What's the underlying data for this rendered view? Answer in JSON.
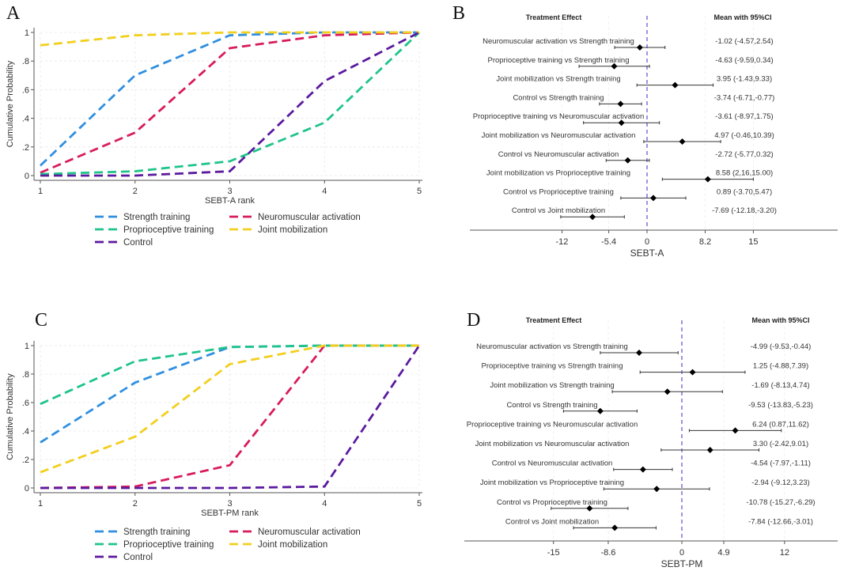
{
  "chart_data": [
    {
      "panel": "A",
      "type": "line",
      "xlabel": "SEBT-A rank",
      "ylabel": "Cumulative Probability",
      "x": [
        1,
        2,
        3,
        4,
        5
      ],
      "xticks": [
        "1",
        "2",
        "3",
        "4",
        "5"
      ],
      "yticks": [
        "0",
        ".2",
        ".4",
        ".6",
        ".8",
        "1"
      ],
      "ylim": [
        0,
        1
      ],
      "grid": true,
      "legend_position": "bottom",
      "series": [
        {
          "name": "Strength training",
          "color": "#2f8fe0",
          "values": [
            0.07,
            0.7,
            0.98,
            1.0,
            1.0
          ]
        },
        {
          "name": "Neuromuscular activation",
          "color": "#d81b5e",
          "values": [
            0.02,
            0.3,
            0.89,
            0.98,
            1.0
          ]
        },
        {
          "name": "Proprioceptive training",
          "color": "#1fc48a",
          "values": [
            0.01,
            0.03,
            0.1,
            0.37,
            1.0
          ]
        },
        {
          "name": "Joint mobilization",
          "color": "#f2cf1d",
          "values": [
            0.91,
            0.98,
            1.0,
            1.0,
            1.0
          ]
        },
        {
          "name": "Control",
          "color": "#5b1a9e",
          "values": [
            0.0,
            0.0,
            0.03,
            0.66,
            1.0
          ]
        }
      ]
    },
    {
      "panel": "B",
      "type": "scatter",
      "subtype": "forest",
      "header_left": "Treatment Effect",
      "header_right": "Mean with 95%CI",
      "xlabel": "SEBT-A",
      "xticks": [
        -12,
        -5.4,
        0,
        8.2,
        15
      ],
      "xtick_labels": [
        "-12",
        "-5.4",
        "0",
        "8.2",
        "15"
      ],
      "reference_line": 0,
      "rows": [
        {
          "label": "Neuromuscular activation  vs Strength training",
          "mean": -1.02,
          "lo": -4.57,
          "hi": 2.54,
          "text": "-1.02 (-4.57,2.54)"
        },
        {
          "label": "Proprioceptive training vs Strength training",
          "mean": -4.63,
          "lo": -9.59,
          "hi": 0.34,
          "text": "-4.63 (-9.59,0.34)"
        },
        {
          "label": "Joint mobilization vs Strength training",
          "mean": 3.95,
          "lo": -1.43,
          "hi": 9.33,
          "text": "3.95 (-1.43,9.33)"
        },
        {
          "label": "Control vs Strength training",
          "mean": -3.74,
          "lo": -6.71,
          "hi": -0.77,
          "text": "-3.74 (-6.71,-0.77)"
        },
        {
          "label": "Proprioceptive training vs Neuromuscular activation",
          "mean": -3.61,
          "lo": -8.97,
          "hi": 1.75,
          "text": "-3.61 (-8.97,1.75)"
        },
        {
          "label": "Joint mobilization vs Neuromuscular activation",
          "mean": 4.97,
          "lo": -0.46,
          "hi": 10.39,
          "text": "4.97 (-0.46,10.39)"
        },
        {
          "label": "Control vs Neuromuscular activation",
          "mean": -2.72,
          "lo": -5.77,
          "hi": 0.32,
          "text": "-2.72 (-5.77,0.32)"
        },
        {
          "label": "Joint mobilization vs Proprioceptive training",
          "mean": 8.58,
          "lo": 2.16,
          "hi": 15.0,
          "text": "8.58 (2,16,15.00)"
        },
        {
          "label": "Control vs Proprioceptive training",
          "mean": 0.89,
          "lo": -3.7,
          "hi": 5.47,
          "text": "0.89 (-3.70,5.47)"
        },
        {
          "label": "Control vs Joint mobilization",
          "mean": -7.69,
          "lo": -12.18,
          "hi": -3.2,
          "text": "-7.69 (-12.18,-3.20)"
        }
      ]
    },
    {
      "panel": "C",
      "type": "line",
      "xlabel": "SEBT-PM rank",
      "ylabel": "Cumulative Probability",
      "x": [
        1,
        2,
        3,
        4,
        5
      ],
      "xticks": [
        "1",
        "2",
        "3",
        "4",
        "5"
      ],
      "yticks": [
        "0",
        ".2",
        ".4",
        ".6",
        ".8",
        "1"
      ],
      "ylim": [
        0,
        1
      ],
      "grid": true,
      "legend_position": "bottom",
      "series": [
        {
          "name": "Strength training",
          "color": "#2f8fe0",
          "values": [
            0.32,
            0.74,
            0.99,
            1.0,
            1.0
          ]
        },
        {
          "name": "Neuromuscular activation",
          "color": "#d81b5e",
          "values": [
            0.0,
            0.01,
            0.16,
            1.0,
            1.0
          ]
        },
        {
          "name": "Proprioceptive training",
          "color": "#1fc48a",
          "values": [
            0.59,
            0.89,
            0.99,
            1.0,
            1.0
          ]
        },
        {
          "name": "Joint mobilization",
          "color": "#f2cf1d",
          "values": [
            0.11,
            0.36,
            0.87,
            1.0,
            1.0
          ]
        },
        {
          "name": "Control",
          "color": "#5b1a9e",
          "values": [
            0.0,
            0.0,
            0.0,
            0.01,
            1.0
          ]
        }
      ]
    },
    {
      "panel": "D",
      "type": "scatter",
      "subtype": "forest",
      "header_left": "Treatment Effect",
      "header_right": "Mean with 95%CI",
      "xlabel": "SEBT-PM",
      "xticks": [
        -15,
        -8.6,
        0,
        4.9,
        12
      ],
      "xtick_labels": [
        "-15",
        "-8.6",
        "0",
        "4.9",
        "12"
      ],
      "reference_line": 0,
      "rows": [
        {
          "label": "Neuromuscular activation  vs Strength training",
          "mean": -4.99,
          "lo": -9.53,
          "hi": -0.44,
          "text": "-4.99 (-9.53,-0.44)"
        },
        {
          "label": "Proprioceptive training vs Strength training",
          "mean": 1.25,
          "lo": -4.88,
          "hi": 7.39,
          "text": "1.25 (-4.88,7.39)"
        },
        {
          "label": "Joint mobilization vs Strength training",
          "mean": -1.69,
          "lo": -8.13,
          "hi": 4.74,
          "text": "-1.69 (-8.13,4.74)"
        },
        {
          "label": "Control vs Strength training",
          "mean": -9.53,
          "lo": -13.83,
          "hi": -5.23,
          "text": "-9.53 (-13.83,-5.23)"
        },
        {
          "label": "Proprioceptive training vs Neuromuscular activation",
          "mean": 6.24,
          "lo": 0.87,
          "hi": 11.62,
          "text": "6.24 (0.87,11.62)"
        },
        {
          "label": "Joint mobilization vs Neuromuscular activation",
          "mean": 3.3,
          "lo": -2.42,
          "hi": 9.01,
          "text": "3.30 (-2.42,9.01)"
        },
        {
          "label": "Control vs Neuromuscular activation",
          "mean": -4.54,
          "lo": -7.97,
          "hi": -1.11,
          "text": "-4.54 (-7.97,-1.11)"
        },
        {
          "label": "Joint mobilization vs Proprioceptive training",
          "mean": -2.94,
          "lo": -9.12,
          "hi": 3.23,
          "text": "-2.94 (-9.12,3.23)"
        },
        {
          "label": "Control vs Proprioceptive training",
          "mean": -10.78,
          "lo": -15.27,
          "hi": -6.29,
          "text": "-10.78 (-15.27,-6.29)"
        },
        {
          "label": "Control vs Joint mobilization",
          "mean": -7.84,
          "lo": -12.66,
          "hi": -3.01,
          "text": "-7.84 (-12.66,-3.01)"
        }
      ]
    }
  ],
  "panels": {
    "a_letter": "A",
    "b_letter": "B",
    "c_letter": "C",
    "d_letter": "D"
  },
  "colors": {
    "reference_line": "#5b4fd6",
    "axis": "#555555",
    "grid": "#e6e6e6",
    "marker": "#000000"
  }
}
